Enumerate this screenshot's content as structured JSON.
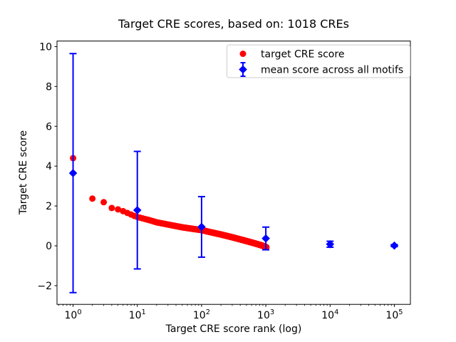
{
  "chart_data": {
    "type": "scatter",
    "title": "Target CRE scores, based on: 1018 CREs",
    "xlabel": "Target CRE score rank (log)",
    "ylabel": "Target CRE score",
    "x_scale": "log",
    "xlim_log10": [
      -0.25,
      5.25
    ],
    "ylim": [
      -2.94,
      10.28
    ],
    "x_tick_base": "10",
    "x_tick_exponents": [
      0,
      1,
      2,
      3,
      4,
      5
    ],
    "y_ticks": [
      -2,
      0,
      2,
      4,
      6,
      8,
      10
    ],
    "grid": false,
    "legend_position": "upper right",
    "series": [
      {
        "name": "target CRE score",
        "type": "scatter",
        "marker": "circle",
        "color": "#ff0000",
        "n_points": 1018,
        "note": "scores by rank, ~1018 points; anchor samples (rank, score), interpolated log-linearly between anchors",
        "anchors_rank_score": [
          [
            1,
            4.4
          ],
          [
            2,
            2.37
          ],
          [
            3,
            2.19
          ],
          [
            4,
            1.9
          ],
          [
            5,
            1.83
          ],
          [
            6,
            1.74
          ],
          [
            7,
            1.65
          ],
          [
            8,
            1.57
          ],
          [
            9,
            1.5
          ],
          [
            10,
            1.45
          ],
          [
            12,
            1.38
          ],
          [
            15,
            1.3
          ],
          [
            20,
            1.18
          ],
          [
            30,
            1.07
          ],
          [
            40,
            0.99
          ],
          [
            50,
            0.93
          ],
          [
            70,
            0.86
          ],
          [
            100,
            0.79
          ],
          [
            140,
            0.68
          ],
          [
            200,
            0.57
          ],
          [
            300,
            0.43
          ],
          [
            450,
            0.28
          ],
          [
            600,
            0.17
          ],
          [
            750,
            0.08
          ],
          [
            900,
            0.0
          ],
          [
            1018,
            -0.07
          ]
        ]
      },
      {
        "name": "mean score across all motifs",
        "type": "errorbar",
        "marker": "diamond",
        "color": "#0000ff",
        "points": [
          {
            "rank": 1,
            "mean": 3.65,
            "err": 6.0
          },
          {
            "rank": 10,
            "mean": 1.79,
            "err": 2.95
          },
          {
            "rank": 100,
            "mean": 0.95,
            "err": 1.52
          },
          {
            "rank": 1000,
            "mean": 0.37,
            "err": 0.57
          },
          {
            "rank": 10000,
            "mean": 0.08,
            "err": 0.15
          },
          {
            "rank": 100000,
            "mean": 0.01,
            "err": 0.05
          }
        ]
      }
    ],
    "colors": {
      "target_series": "#ff0000",
      "mean_series": "#0000ff",
      "axis": "#000000",
      "legend_border": "#cccccc",
      "background": "#ffffff"
    }
  }
}
